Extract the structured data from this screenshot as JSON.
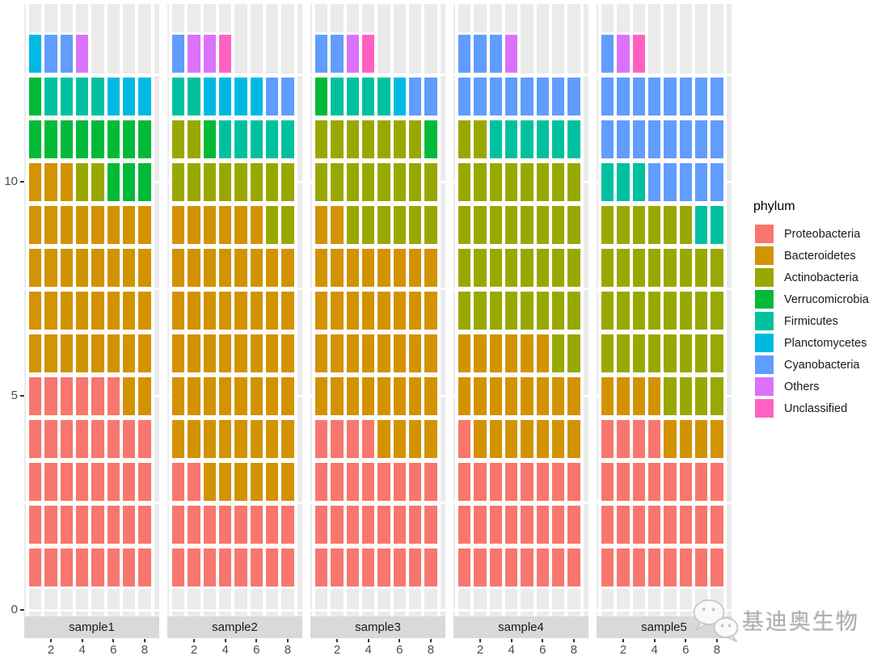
{
  "chart_data": {
    "type": "waffle",
    "title": "",
    "legend_title": "phylum",
    "legend_position": "right",
    "x_tick_labels": [
      "2",
      "4",
      "6",
      "8"
    ],
    "x_tick_values": [
      2,
      4,
      6,
      8
    ],
    "y_tick_labels": [
      "0",
      "5",
      "10"
    ],
    "y_tick_values": [
      0,
      5,
      10
    ],
    "ylim": [
      -0.15,
      14.2
    ],
    "xlim": [
      -0.3,
      8.95
    ],
    "grid": "white-on-grey",
    "panel_bg": "#EBEBEB",
    "strip_bg": "#D9D9D9",
    "axis_text_color": "#4d4d4d",
    "phyla": [
      {
        "key": "P",
        "name": "Proteobacteria",
        "color": "#F8766D"
      },
      {
        "key": "B",
        "name": "Bacteroidetes",
        "color": "#D39200"
      },
      {
        "key": "A",
        "name": "Actinobacteria",
        "color": "#99A800"
      },
      {
        "key": "V",
        "name": "Verrucomicrobia",
        "color": "#00BA38"
      },
      {
        "key": "F",
        "name": "Firmicutes",
        "color": "#00C19F"
      },
      {
        "key": "Pl",
        "name": "Planctomycetes",
        "color": "#00B9E3"
      },
      {
        "key": "C",
        "name": "Cyanobacteria",
        "color": "#619CFF"
      },
      {
        "key": "O",
        "name": "Others",
        "color": "#DB72FB"
      },
      {
        "key": "U",
        "name": "Unclassified",
        "color": "#FF61C3"
      }
    ],
    "facets": [
      {
        "label": "sample1",
        "columns": [
          [
            "P",
            "P",
            "P",
            "P",
            "P",
            "B",
            "B",
            "B",
            "B",
            "B",
            "V",
            "V",
            "Pl"
          ],
          [
            "P",
            "P",
            "P",
            "P",
            "P",
            "B",
            "B",
            "B",
            "B",
            "B",
            "V",
            "F",
            "C"
          ],
          [
            "P",
            "P",
            "P",
            "P",
            "P",
            "B",
            "B",
            "B",
            "B",
            "B",
            "V",
            "F",
            "C"
          ],
          [
            "P",
            "P",
            "P",
            "P",
            "P",
            "B",
            "B",
            "B",
            "B",
            "A",
            "V",
            "F",
            "O"
          ],
          [
            "P",
            "P",
            "P",
            "P",
            "P",
            "B",
            "B",
            "B",
            "B",
            "A",
            "V",
            "F"
          ],
          [
            "P",
            "P",
            "P",
            "P",
            "P",
            "B",
            "B",
            "B",
            "B",
            "V",
            "V",
            "Pl"
          ],
          [
            "P",
            "P",
            "P",
            "P",
            "B",
            "B",
            "B",
            "B",
            "B",
            "V",
            "V",
            "Pl"
          ],
          [
            "P",
            "P",
            "P",
            "P",
            "B",
            "B",
            "B",
            "B",
            "B",
            "V",
            "V",
            "Pl"
          ]
        ]
      },
      {
        "label": "sample2",
        "columns": [
          [
            "P",
            "P",
            "P",
            "B",
            "B",
            "B",
            "B",
            "B",
            "B",
            "A",
            "A",
            "F",
            "C"
          ],
          [
            "P",
            "P",
            "P",
            "B",
            "B",
            "B",
            "B",
            "B",
            "B",
            "A",
            "A",
            "F",
            "O"
          ],
          [
            "P",
            "P",
            "B",
            "B",
            "B",
            "B",
            "B",
            "B",
            "B",
            "A",
            "V",
            "Pl",
            "O"
          ],
          [
            "P",
            "P",
            "B",
            "B",
            "B",
            "B",
            "B",
            "B",
            "B",
            "A",
            "F",
            "Pl",
            "U"
          ],
          [
            "P",
            "P",
            "B",
            "B",
            "B",
            "B",
            "B",
            "B",
            "B",
            "A",
            "F",
            "Pl"
          ],
          [
            "P",
            "P",
            "B",
            "B",
            "B",
            "B",
            "B",
            "B",
            "B",
            "A",
            "F",
            "Pl"
          ],
          [
            "P",
            "P",
            "B",
            "B",
            "B",
            "B",
            "B",
            "B",
            "A",
            "A",
            "F",
            "C"
          ],
          [
            "P",
            "P",
            "B",
            "B",
            "B",
            "B",
            "B",
            "B",
            "A",
            "A",
            "F",
            "C"
          ]
        ]
      },
      {
        "label": "sample3",
        "columns": [
          [
            "P",
            "P",
            "P",
            "P",
            "B",
            "B",
            "B",
            "B",
            "B",
            "A",
            "A",
            "V",
            "C"
          ],
          [
            "P",
            "P",
            "P",
            "P",
            "B",
            "B",
            "B",
            "B",
            "B",
            "A",
            "A",
            "F",
            "C"
          ],
          [
            "P",
            "P",
            "P",
            "P",
            "B",
            "B",
            "B",
            "B",
            "A",
            "A",
            "A",
            "F",
            "O"
          ],
          [
            "P",
            "P",
            "P",
            "P",
            "B",
            "B",
            "B",
            "B",
            "A",
            "A",
            "A",
            "F",
            "U"
          ],
          [
            "P",
            "P",
            "P",
            "B",
            "B",
            "B",
            "B",
            "B",
            "A",
            "A",
            "A",
            "F"
          ],
          [
            "P",
            "P",
            "P",
            "B",
            "B",
            "B",
            "B",
            "B",
            "A",
            "A",
            "A",
            "Pl"
          ],
          [
            "P",
            "P",
            "P",
            "B",
            "B",
            "B",
            "B",
            "B",
            "A",
            "A",
            "A",
            "C"
          ],
          [
            "P",
            "P",
            "P",
            "B",
            "B",
            "B",
            "B",
            "B",
            "A",
            "A",
            "V",
            "C"
          ]
        ]
      },
      {
        "label": "sample4",
        "columns": [
          [
            "P",
            "P",
            "P",
            "P",
            "B",
            "B",
            "A",
            "A",
            "A",
            "A",
            "A",
            "C",
            "C"
          ],
          [
            "P",
            "P",
            "P",
            "B",
            "B",
            "B",
            "A",
            "A",
            "A",
            "A",
            "A",
            "C",
            "C"
          ],
          [
            "P",
            "P",
            "P",
            "B",
            "B",
            "B",
            "A",
            "A",
            "A",
            "A",
            "F",
            "C",
            "C"
          ],
          [
            "P",
            "P",
            "P",
            "B",
            "B",
            "B",
            "A",
            "A",
            "A",
            "A",
            "F",
            "C",
            "O"
          ],
          [
            "P",
            "P",
            "P",
            "B",
            "B",
            "B",
            "A",
            "A",
            "A",
            "A",
            "F",
            "C"
          ],
          [
            "P",
            "P",
            "P",
            "B",
            "B",
            "B",
            "A",
            "A",
            "A",
            "A",
            "F",
            "C"
          ],
          [
            "P",
            "P",
            "P",
            "B",
            "B",
            "A",
            "A",
            "A",
            "A",
            "A",
            "F",
            "C"
          ],
          [
            "P",
            "P",
            "P",
            "B",
            "B",
            "A",
            "A",
            "A",
            "A",
            "A",
            "F",
            "C"
          ]
        ]
      },
      {
        "label": "sample5",
        "columns": [
          [
            "P",
            "P",
            "P",
            "P",
            "B",
            "A",
            "A",
            "A",
            "A",
            "F",
            "C",
            "C",
            "C"
          ],
          [
            "P",
            "P",
            "P",
            "P",
            "B",
            "A",
            "A",
            "A",
            "A",
            "F",
            "C",
            "C",
            "O"
          ],
          [
            "P",
            "P",
            "P",
            "P",
            "B",
            "A",
            "A",
            "A",
            "A",
            "F",
            "C",
            "C",
            "U"
          ],
          [
            "P",
            "P",
            "P",
            "P",
            "B",
            "A",
            "A",
            "A",
            "A",
            "C",
            "C",
            "C"
          ],
          [
            "P",
            "P",
            "P",
            "B",
            "A",
            "A",
            "A",
            "A",
            "A",
            "C",
            "C",
            "C"
          ],
          [
            "P",
            "P",
            "P",
            "B",
            "A",
            "A",
            "A",
            "A",
            "A",
            "C",
            "C",
            "C"
          ],
          [
            "P",
            "P",
            "P",
            "B",
            "A",
            "A",
            "A",
            "A",
            "F",
            "C",
            "C",
            "C"
          ],
          [
            "P",
            "P",
            "P",
            "B",
            "A",
            "A",
            "A",
            "A",
            "F",
            "C",
            "C",
            "C"
          ]
        ]
      }
    ]
  },
  "legend": {
    "title": "phylum"
  },
  "watermark": {
    "text": "基迪奥生物",
    "icon": "wechat-icon"
  }
}
